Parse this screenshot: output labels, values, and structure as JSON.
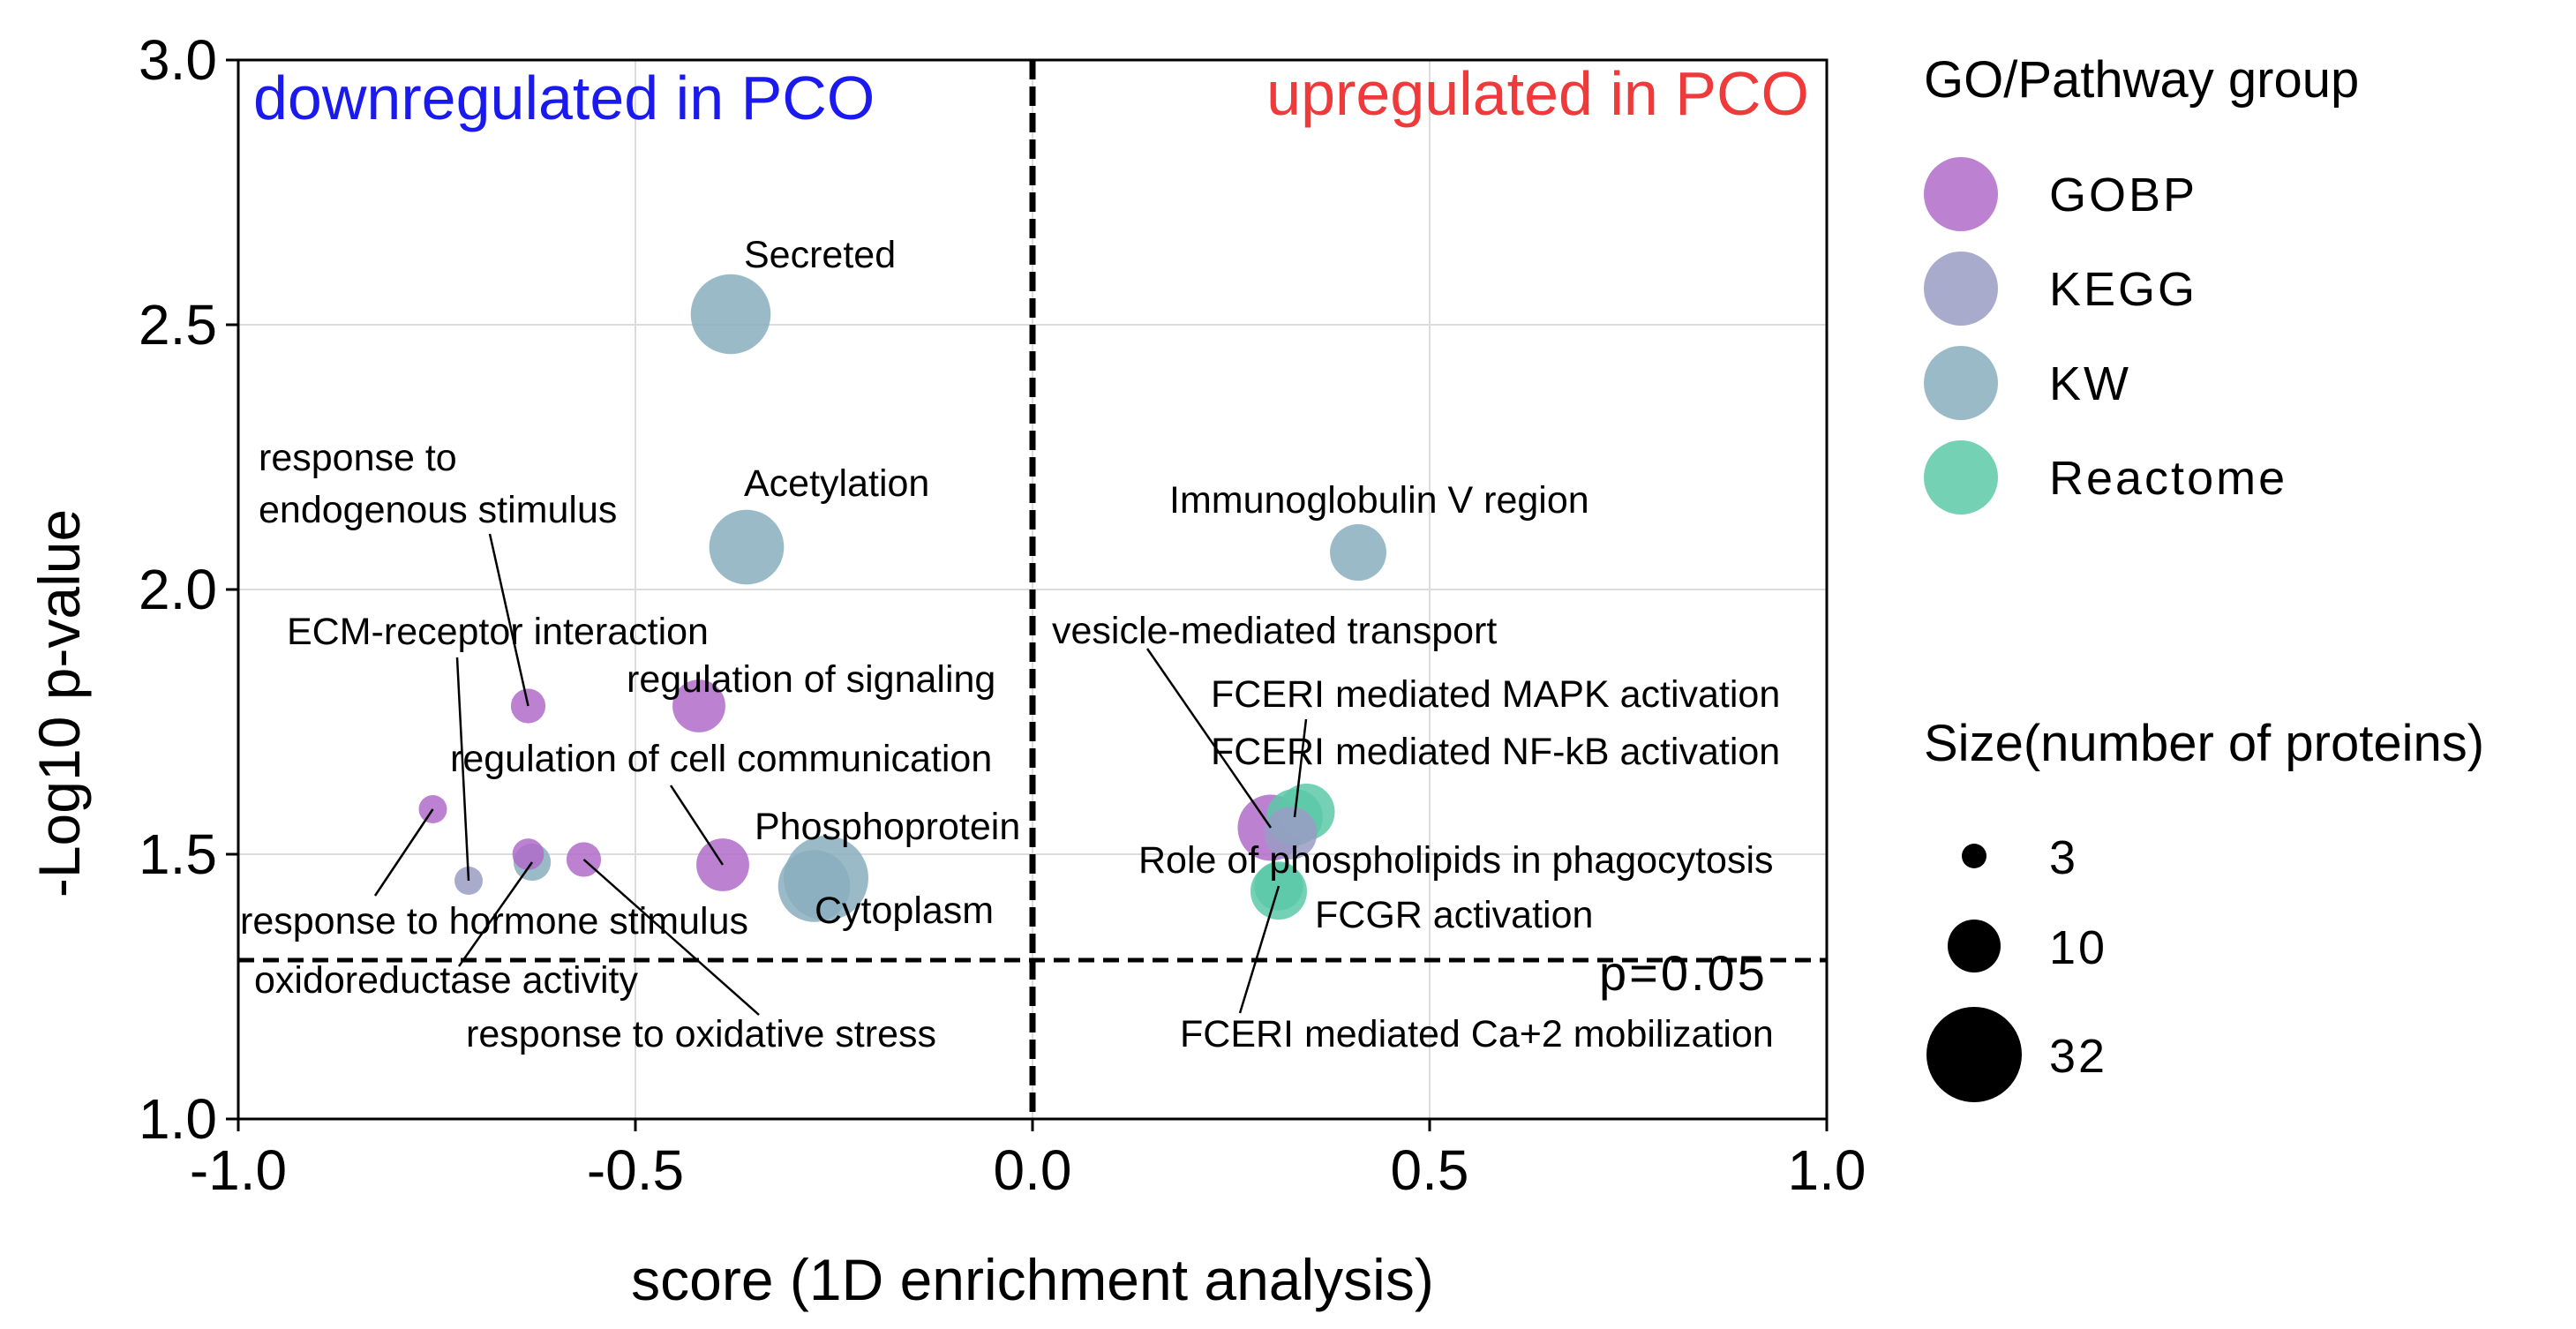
{
  "colors": {
    "GOBP": "#b06bc9",
    "KEGG": "#9a9cc4",
    "KW": "#8aaebd",
    "Reactome": "#5cc9a7",
    "downregulated": "#1a1aee",
    "upregulated": "#ee3a3a"
  },
  "chart_data": {
    "type": "scatter",
    "title": "",
    "xlabel": "score (1D enrichment analysis)",
    "ylabel": "-Log10 p-value",
    "xlim": [
      -1.0,
      1.0
    ],
    "ylim": [
      1.0,
      3.0
    ],
    "xticks": [
      "-1.0",
      "-0.5",
      "0.0",
      "0.5",
      "1.0"
    ],
    "yticks": [
      "1.0",
      "1.5",
      "2.0",
      "2.5",
      "3.0"
    ],
    "grid": true,
    "threshold": {
      "y": 1.3,
      "label": "p=0.05"
    },
    "vertical_ref": {
      "x": 0.0
    },
    "regions": {
      "left": "downregulated in PCO",
      "right": "upregulated in PCO"
    },
    "points": [
      {
        "name": "Secreted",
        "group": "KW",
        "x": -0.38,
        "y": 2.52,
        "size": 32
      },
      {
        "name": "Acetylation",
        "group": "KW",
        "x": -0.36,
        "y": 2.08,
        "size": 28
      },
      {
        "name": "Immunoglobulin V region",
        "group": "KW",
        "x": 0.41,
        "y": 2.07,
        "size": 16
      },
      {
        "name": "response to endogenous stimulus",
        "group": "GOBP",
        "x": -0.635,
        "y": 1.78,
        "size": 6
      },
      {
        "name": "regulation of signaling",
        "group": "GOBP",
        "x": -0.42,
        "y": 1.78,
        "size": 14
      },
      {
        "name": "regulation of cell communication",
        "group": "GOBP",
        "x": -0.39,
        "y": 1.48,
        "size": 14
      },
      {
        "name": "response to hormone stimulus",
        "group": "GOBP",
        "x": -0.755,
        "y": 1.585,
        "size": 4
      },
      {
        "name": "ECM-receptor interaction",
        "group": "KEGG",
        "x": -0.71,
        "y": 1.45,
        "size": 4
      },
      {
        "name": "oxidoreductase activity",
        "group": "KW",
        "x": -0.63,
        "y": 1.485,
        "size": 7
      },
      {
        "name": "response to oxidative stress",
        "group": "GOBP",
        "x": -0.565,
        "y": 1.49,
        "size": 6
      },
      {
        "name": "",
        "group": "GOBP",
        "x": -0.635,
        "y": 1.5,
        "size": 5
      },
      {
        "name": "Phosphoprotein",
        "group": "KW",
        "x": -0.26,
        "y": 1.455,
        "size": 36
      },
      {
        "name": "Cytoplasm",
        "group": "KW",
        "x": -0.275,
        "y": 1.44,
        "size": 26
      },
      {
        "name": "vesicle-mediated transport",
        "group": "GOBP",
        "x": 0.3,
        "y": 1.55,
        "size": 22
      },
      {
        "name": "Role of phospholipids in phagocytosis",
        "group": "KEGG",
        "x": 0.325,
        "y": 1.54,
        "size": 14
      },
      {
        "name": "FCERI mediated MAPK activation",
        "group": "Reactome",
        "x": 0.33,
        "y": 1.57,
        "size": 16
      },
      {
        "name": "FCERI mediated NF-kB activation",
        "group": "Reactome",
        "x": 0.345,
        "y": 1.58,
        "size": 16
      },
      {
        "name": "FCGR activation",
        "group": "Reactome",
        "x": 0.31,
        "y": 1.43,
        "size": 16
      },
      {
        "name": "FCERI mediated Ca+2 mobilization",
        "group": "Reactome",
        "x": 0.31,
        "y": 1.44,
        "size": 12
      }
    ],
    "annotations": {
      "response_to": "response to",
      "endogenous_stimulus": "endogenous stimulus"
    },
    "legend": {
      "group_title": "GO/Pathway group",
      "groups": [
        "GOBP",
        "KEGG",
        "KW",
        "Reactome"
      ],
      "size_title": "Size(number of proteins)",
      "sizes": [
        3,
        10,
        32
      ]
    }
  }
}
